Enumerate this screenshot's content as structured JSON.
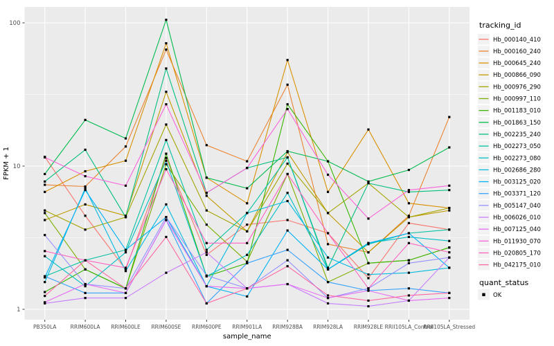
{
  "figure": {
    "bg": "#FFFFFF",
    "panel_bg": "#EBEBEB",
    "grid_color": "#FFFFFF",
    "tick_mark_color": "#333333",
    "tick_label_color": "#4D4D4D",
    "title_color": "#000000",
    "legend_key_bg": "#F2F2F2",
    "point_color": "#000000"
  },
  "y_axis": {
    "title": "FPKM + 1",
    "tick_labels": [
      "1",
      "10",
      "100"
    ],
    "tick_values": [
      1,
      10,
      100
    ],
    "scale": "log"
  },
  "x_axis": {
    "title": "sample_name"
  },
  "legend": {
    "tracking_title": "tracking_id",
    "quant_title": "quant_status",
    "quant_items": [
      {
        "label": "OK",
        "shape": "black-square"
      }
    ]
  },
  "chart_data": {
    "type": "line",
    "title": "",
    "xlabel": "sample_name",
    "ylabel": "FPKM + 1",
    "yscale": "log",
    "ylim": [
      1,
      110
    ],
    "grid": true,
    "legend_position": "right",
    "point_shape": "square",
    "x": [
      "PB350LA",
      "RRIM600LA",
      "RRIM600LE",
      "RRIM600SE",
      "RRIM600PE",
      "RRIM901LA",
      "RRIM928BA",
      "RRIM928LA",
      "RRIM928LE",
      "RRII105LA_Control",
      "RRII105LA_Stressed"
    ],
    "minor_gridline_values": [
      3.162,
      31.62
    ],
    "series": [
      {
        "name": "Hb_000140_410",
        "color": "#F8766D",
        "values": [
          11.6,
          4.5,
          1.9,
          11.4,
          2.4,
          3.9,
          4.2,
          3.4,
          1.65,
          4.0,
          3.6
        ]
      },
      {
        "name": "Hb_000160_240",
        "color": "#EA8331",
        "values": [
          7.4,
          7.2,
          13.7,
          65,
          14.0,
          10.8,
          37,
          2.85,
          2.5,
          4.5,
          22
        ]
      },
      {
        "name": "Hb_000645_240",
        "color": "#D89000",
        "values": [
          6.6,
          9.2,
          10.9,
          72,
          8.3,
          5.5,
          55,
          6.6,
          18,
          5.5,
          5.1
        ]
      },
      {
        "name": "Hb_000866_090",
        "color": "#C09B00",
        "values": [
          4.2,
          5.4,
          4.5,
          33,
          6.2,
          3.5,
          12.5,
          4.7,
          2.5,
          4.4,
          4.9
        ]
      },
      {
        "name": "Hb_000976_290",
        "color": "#A3A500",
        "values": [
          4.9,
          3.6,
          4.4,
          19.5,
          4.9,
          3.5,
          10.4,
          4.7,
          7.6,
          4.4,
          5.1
        ]
      },
      {
        "name": "Hb_000997_110",
        "color": "#7CAE00",
        "values": [
          4.7,
          1.9,
          1.4,
          10.3,
          3.9,
          2.15,
          8.8,
          1.55,
          2.1,
          2.2,
          2.7
        ]
      },
      {
        "name": "Hb_001183_010",
        "color": "#39B600",
        "values": [
          1.32,
          1.9,
          1.4,
          12.2,
          1.7,
          2.1,
          27,
          10.8,
          2.1,
          2.2,
          2.7
        ]
      },
      {
        "name": "Hb_001863_150",
        "color": "#00BB4E",
        "values": [
          8.8,
          21,
          15.6,
          105,
          8.3,
          7.0,
          12.7,
          10.8,
          7.8,
          9.4,
          13.5
        ]
      },
      {
        "name": "Hb_002235_240",
        "color": "#00BF7D",
        "values": [
          7.8,
          13,
          4.4,
          48,
          6.5,
          9.7,
          11.5,
          1.95,
          7.6,
          6.6,
          6.8
        ]
      },
      {
        "name": "Hb_002273_050",
        "color": "#00C1A3",
        "values": [
          1.7,
          2.2,
          2.6,
          15.2,
          2.6,
          4.7,
          11.5,
          1.9,
          2.85,
          3.4,
          3.6
        ]
      },
      {
        "name": "Hb_002273_080",
        "color": "#00BFC4",
        "values": [
          2.35,
          1.45,
          2.5,
          10.9,
          1.7,
          2.4,
          6.5,
          1.9,
          2.9,
          3.2,
          3.0
        ]
      },
      {
        "name": "Hb_002686_280",
        "color": "#00BAE0",
        "values": [
          1.55,
          7.0,
          1.85,
          5.4,
          1.45,
          4.7,
          5.7,
          2.3,
          1.75,
          1.8,
          1.95
        ]
      },
      {
        "name": "Hb_003125_020",
        "color": "#00B0F6",
        "values": [
          1.67,
          6.8,
          2.6,
          4.4,
          1.45,
          1.23,
          3.55,
          1.9,
          2.9,
          3.4,
          1.95
        ]
      },
      {
        "name": "Hb_003371_120",
        "color": "#35A2FF",
        "values": [
          1.7,
          1.3,
          1.3,
          4.2,
          1.1,
          2.1,
          2.6,
          1.55,
          1.35,
          1.4,
          1.3
        ]
      },
      {
        "name": "Hb_005147_040",
        "color": "#9590FF",
        "values": [
          3.3,
          1.5,
          1.4,
          4.4,
          1.72,
          1.4,
          2.2,
          1.2,
          1.4,
          2.1,
          2.3
        ]
      },
      {
        "name": "Hb_006026_010",
        "color": "#C77CFF",
        "values": [
          1.1,
          1.2,
          1.2,
          1.8,
          2.5,
          1.4,
          1.5,
          1.1,
          1.05,
          1.15,
          2.3
        ]
      },
      {
        "name": "Hb_007125_040",
        "color": "#E76BF3",
        "values": [
          1.12,
          1.5,
          1.3,
          4.2,
          1.45,
          1.4,
          1.5,
          1.2,
          1.35,
          1.15,
          1.2
        ]
      },
      {
        "name": "Hb_011930_070",
        "color": "#FA62DB",
        "values": [
          11.5,
          8.5,
          7.3,
          27,
          6.5,
          9.7,
          25,
          8.7,
          4.3,
          6.8,
          7.3
        ]
      },
      {
        "name": "Hb_020805_170",
        "color": "#FF61C3",
        "values": [
          2.55,
          2.2,
          1.95,
          9.5,
          2.9,
          2.9,
          8.8,
          3.4,
          1.4,
          2.9,
          2.5
        ]
      },
      {
        "name": "Hb_042175_010",
        "color": "#FF67A4",
        "values": [
          1.24,
          2.2,
          1.4,
          3.2,
          1.1,
          1.4,
          2.0,
          1.25,
          1.15,
          1.25,
          1.3
        ]
      }
    ]
  }
}
